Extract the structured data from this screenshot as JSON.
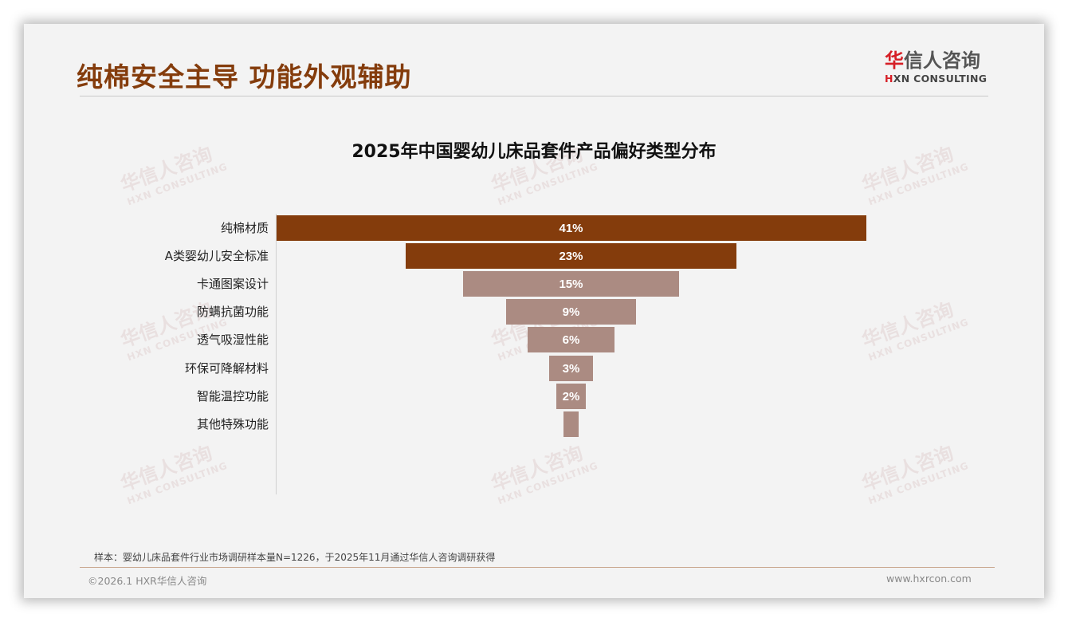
{
  "header": {
    "headline": "纯棉安全主导 功能外观辅助",
    "logo": {
      "cn_mark": "华",
      "cn_rest": "信人咨询",
      "en_mark": "H",
      "en_rest": "XN CONSULTING"
    }
  },
  "watermark": {
    "cn": "华信人咨询",
    "en": "HXN CONSULTING"
  },
  "colors": {
    "primary_bar": "#843c0c",
    "secondary_bar": "#ab8b82",
    "headline": "#843c0c",
    "logo_red": "#d61f26"
  },
  "chart_data": {
    "type": "bar",
    "subtype": "funnel (centered horizontal bars)",
    "title": "2025年中国婴幼儿床品套件产品偏好类型分布",
    "xlabel": "",
    "ylabel": "",
    "categories": [
      "纯棉材质",
      "A类婴幼儿安全标准",
      "卡通图案设计",
      "防螨抗菌功能",
      "透气吸湿性能",
      "环保可降解材料",
      "智能温控功能",
      "其他特殊功能"
    ],
    "values": [
      41,
      23,
      15,
      9,
      6,
      3,
      2,
      1
    ],
    "value_labels": [
      "41%",
      "23%",
      "15%",
      "9%",
      "6%",
      "3%",
      "2%",
      ""
    ],
    "unit": "%",
    "highlighted_top_n": 2,
    "grid": false,
    "legend": "none"
  },
  "footer": {
    "source_note": "样本：婴幼儿床品套件行业市场调研样本量N=1226，于2025年11月通过华信人咨询调研获得",
    "copyright": "©2026.1 HXR华信人咨询",
    "website": "www.hxrcon.com"
  }
}
